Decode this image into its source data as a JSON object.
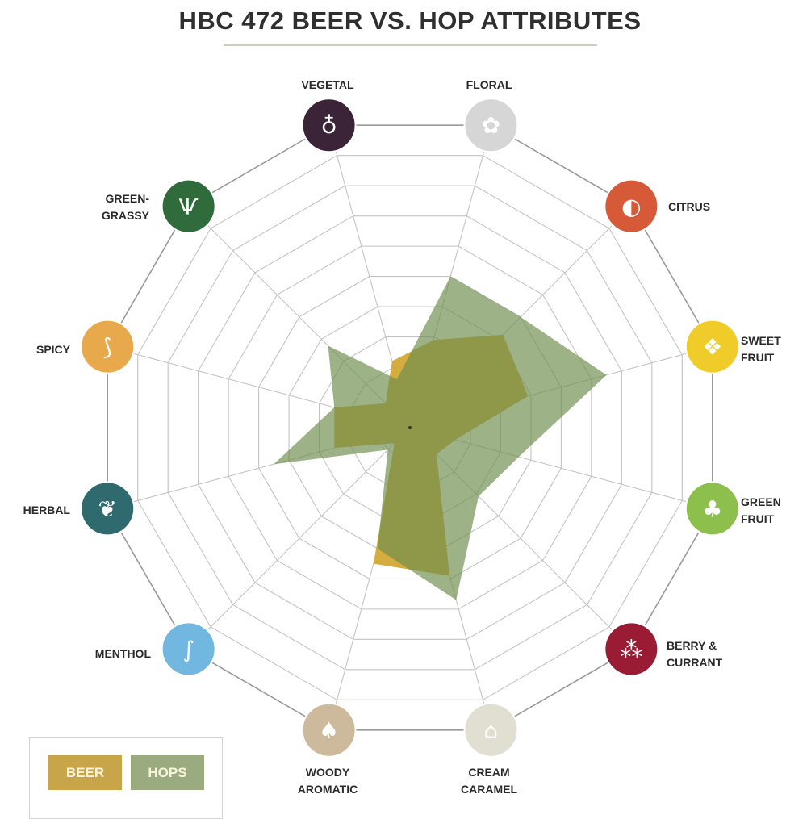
{
  "chart_data": {
    "type": "radar",
    "title": "HBC 472 BEER VS. HOP ATTRIBUTES",
    "categories": [
      {
        "line1": "VEGETAL",
        "line2": "",
        "color": "#3b2437",
        "icon": "onion-icon"
      },
      {
        "line1": "FLORAL",
        "line2": "",
        "color": "#d6d6d6",
        "icon": "flower-icon"
      },
      {
        "line1": "CITRUS",
        "line2": "",
        "color": "#d65a38",
        "icon": "lemon-icon"
      },
      {
        "line1": "SWEET",
        "line2": "FRUIT",
        "color": "#f0cc2a",
        "icon": "pineapple-icon"
      },
      {
        "line1": "GREEN",
        "line2": "FRUIT",
        "color": "#8cbf4c",
        "icon": "apple-pear-icon"
      },
      {
        "line1": "BERRY &",
        "line2": "CURRANT",
        "color": "#9a1c34",
        "icon": "berries-icon"
      },
      {
        "line1": "CREAM",
        "line2": "CARAMEL",
        "color": "#e1ded2",
        "icon": "cupcake-icon"
      },
      {
        "line1": "WOODY",
        "line2": "AROMATIC",
        "color": "#cdb99b",
        "icon": "trees-icon"
      },
      {
        "line1": "MENTHOL",
        "line2": "",
        "color": "#72b7e0",
        "icon": "candy-cane-icon"
      },
      {
        "line1": "HERBAL",
        "line2": "",
        "color": "#2e6a6e",
        "icon": "leaf-icon"
      },
      {
        "line1": "SPICY",
        "line2": "",
        "color": "#e8a94c",
        "icon": "chili-icon"
      },
      {
        "line1": "GREEN-",
        "line2": "GRASSY",
        "color": "#2f6b3b",
        "icon": "grass-icon"
      }
    ],
    "series": [
      {
        "name": "BEER",
        "color": "#d2a836",
        "values": [
          2.2,
          2.9,
          4.2,
          3.9,
          1.5,
          1.2,
          4.9,
          4.5,
          0.7,
          2.5,
          2.5,
          1.1
        ]
      },
      {
        "name": "HOPS",
        "color": "#6f8f4e",
        "values": [
          1.6,
          5.0,
          5.0,
          6.5,
          3.6,
          3.1,
          5.7,
          4.0,
          1.0,
          4.5,
          2.5,
          3.7
        ]
      }
    ],
    "rlim": [
      0,
      10
    ],
    "grid": true,
    "legend": "bottom-left",
    "legend_colors": {
      "BEER": "#c9a54a",
      "HOPS": "#9aab7f"
    }
  }
}
